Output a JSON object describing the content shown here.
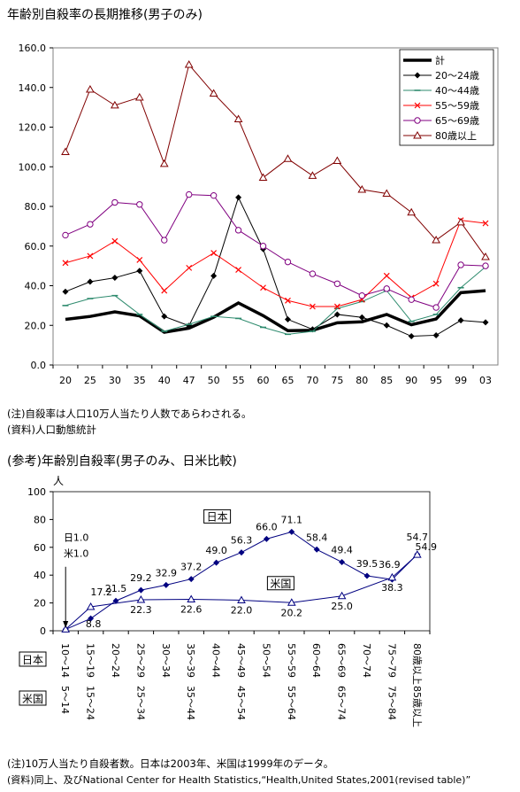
{
  "title1": "年齢別自殺率の長期推移(男子のみ)",
  "note1": "(注)自殺率は人口10万人当たり人数であらわされる。",
  "source1": "(資料)人口動態統計",
  "title2": "(参考)年齢別自殺率(男子のみ、日米比較)",
  "note2": "(注)10万人当たり自殺者数。日本は2003年、米国は1999年のデータ。",
  "source2": "(資料)同上、及びNational Center for Health Statistics,“Health,United States,2001(revised table)”",
  "chart_data": [
    {
      "type": "line",
      "categories": [
        "20",
        "25",
        "30",
        "35",
        "40",
        "47",
        "50",
        "55",
        "60",
        "65",
        "70",
        "75",
        "80",
        "85",
        "90",
        "95",
        "99",
        "03"
      ],
      "ylim": [
        0,
        160
      ],
      "yticks": [
        "0.0",
        "20.0",
        "40.0",
        "60.0",
        "80.0",
        "100.0",
        "120.0",
        "140.0",
        "160.0"
      ],
      "legend_position": "top-right",
      "grid": false,
      "series": [
        {
          "name": "計",
          "color": "#000000",
          "marker": "none",
          "width": 3.5,
          "values": [
            23.0,
            24.5,
            26.8,
            24.8,
            16.5,
            18.6,
            24.1,
            31.3,
            24.9,
            17.3,
            17.5,
            21.3,
            21.8,
            25.5,
            20.3,
            23.2,
            36.5,
            37.5
          ]
        },
        {
          "name": "20～24歳",
          "color": "#000000",
          "marker": "diamond",
          "width": 1,
          "values": [
            37.0,
            42.0,
            44.0,
            47.5,
            24.5,
            19.8,
            45.0,
            84.5,
            58.5,
            23.0,
            18.0,
            25.5,
            24.0,
            20.0,
            14.5,
            15.0,
            22.5,
            21.5
          ]
        },
        {
          "name": "40～44歳",
          "color": "#2e8b6e",
          "marker": "dash",
          "width": 1,
          "values": [
            30.0,
            33.5,
            35.0,
            25.5,
            17.0,
            20.5,
            24.5,
            23.5,
            19.0,
            15.5,
            17.0,
            28.5,
            32.0,
            37.5,
            22.0,
            25.5,
            39.0,
            49.5
          ]
        },
        {
          "name": "55～59歳",
          "color": "#ff0000",
          "marker": "x",
          "width": 1,
          "values": [
            51.5,
            55.0,
            62.5,
            53.0,
            37.5,
            49.0,
            56.5,
            48.0,
            39.0,
            32.5,
            29.5,
            29.5,
            33.0,
            45.0,
            34.0,
            41.0,
            73.0,
            71.5
          ]
        },
        {
          "name": "65～69歳",
          "color": "#800080",
          "marker": "circle",
          "width": 1,
          "values": [
            65.5,
            71.0,
            82.0,
            81.0,
            63.0,
            86.0,
            85.5,
            68.0,
            60.0,
            52.0,
            46.0,
            41.0,
            35.0,
            38.5,
            33.0,
            29.0,
            50.5,
            50.0
          ]
        },
        {
          "name": "80歳以上",
          "color": "#800000",
          "marker": "triangle",
          "width": 1,
          "values": [
            107.5,
            139.0,
            131.0,
            135.0,
            101.5,
            151.5,
            137.0,
            124.0,
            94.5,
            104.0,
            95.5,
            103.0,
            88.5,
            86.5,
            77.0,
            63.0,
            72.0,
            54.5
          ]
        }
      ]
    },
    {
      "type": "line",
      "ylim": [
        0,
        100
      ],
      "yticks": [
        "0",
        "20",
        "40",
        "60",
        "80",
        "100"
      ],
      "ylabel": "人",
      "grid": false,
      "row_labels": {
        "japan": "日本",
        "us": "米国"
      },
      "japan_categories": [
        "10～14",
        "15～19",
        "20～24",
        "25～29",
        "30～34",
        "35～39",
        "40～44",
        "45～49",
        "50～54",
        "55～59",
        "60～64",
        "65～69",
        "70～74",
        "75～79",
        "80歳以上"
      ],
      "us_categories": [
        "5～14",
        "15～24",
        "25～34",
        "35～44",
        "45～54",
        "55～64",
        "65～74",
        "75～84",
        "85歳以上"
      ],
      "series": [
        {
          "name": "日本",
          "color": "#000080",
          "marker": "diamond",
          "values": [
            1.0,
            8.8,
            21.5,
            29.2,
            32.9,
            37.2,
            49.0,
            56.3,
            66.0,
            71.1,
            58.4,
            49.4,
            39.5,
            36.9,
            54.9
          ],
          "labels": [
            "日1.0",
            "8.8",
            "21.5",
            "29.2",
            "32.9",
            "37.2",
            "49.0",
            "56.3",
            "66.0",
            "71.1",
            "58.4",
            "49.4",
            "39.5",
            "36.9",
            "54.9"
          ]
        },
        {
          "name": "米国",
          "color": "#000080",
          "marker": "triangle",
          "x_index": [
            0,
            1,
            3,
            5,
            7,
            9,
            11,
            13,
            14
          ],
          "values": [
            1.0,
            17.2,
            22.3,
            22.6,
            22.0,
            20.2,
            25.0,
            38.3,
            54.7
          ],
          "labels": [
            "米1.0",
            "17.2",
            "22.3",
            "22.6",
            "22.0",
            "20.2",
            "25.0",
            "38.3",
            "54.7"
          ]
        }
      ]
    }
  ]
}
